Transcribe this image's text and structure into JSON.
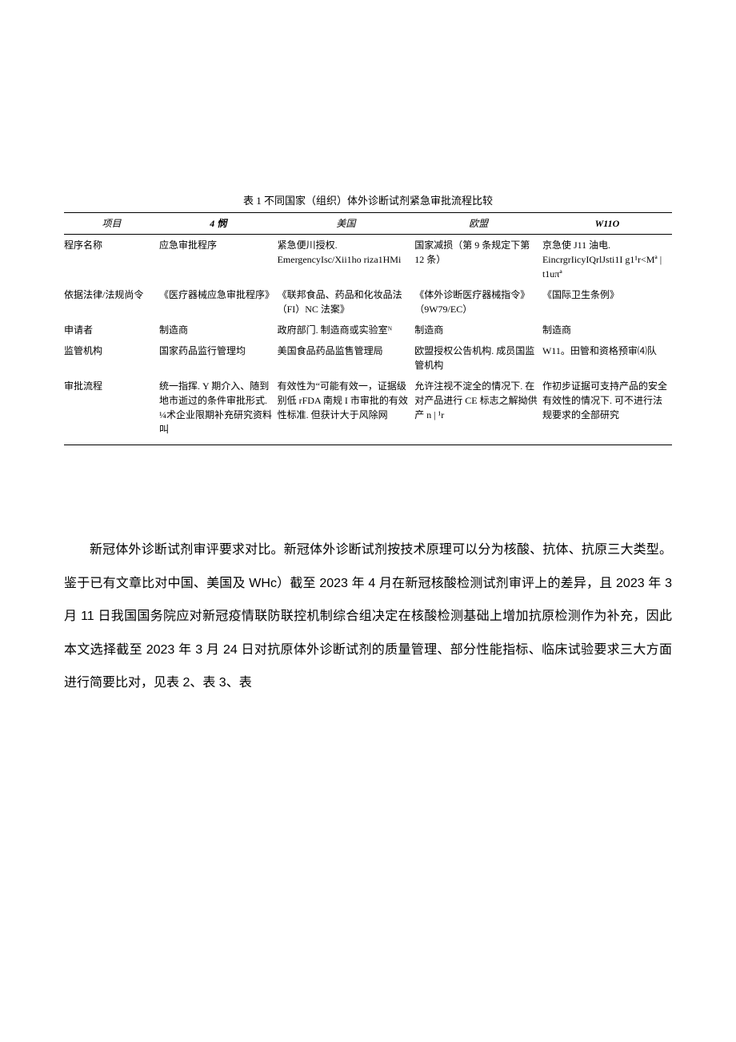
{
  "tableCaption": "表 1 不同国家（组织）体外诊断试剂紧急审批流程比较",
  "headers": {
    "c0": "项目",
    "c1": "4 悯",
    "c2": "美国",
    "c3": "欧盟",
    "c4": "W11O"
  },
  "rows": {
    "r1": {
      "c0": "程序名称",
      "c1": "应急审批程序",
      "c2": "紧急便川授权. EmergencyIsc/Xii1ho riza1HMi",
      "c3": "国家减损（第 9 条规定下第 12 条）",
      "c4": "京急使 J11 油电. EincrgrIicyIQrlJsti1I g1¹r<Mª | t1uπª"
    },
    "r2": {
      "c0": "依据法律/法规尚令",
      "c1": "《医疗器械应急审批程序》",
      "c2": "《联邦食品、药品和化妆品法（FI）NC 法案》",
      "c3": "《体外诊断医疗器械指令》（9W79/EC）",
      "c4": "《国际卫生条例》"
    },
    "r3": {
      "c0": "申请者",
      "c1": "制造商",
      "c2": "政府部门. 制造商或实验室ᴺ",
      "c3": "制造商",
      "c4": "制造商"
    },
    "r4": {
      "c0": "监管机构",
      "c1": "国家药品监行管理均",
      "c2": "美国食品药品监售管理局",
      "c3": "欧盟授权公告机构. 成员国监管机构",
      "c4": "W11。田管和资格预审⑷队"
    },
    "r5": {
      "c0": "审批流程",
      "c1": "统一指挥. Y 期介入、随到地市逝过的条件审批形式. ¼术企业限期补充研究资料叫",
      "c2": "有效性为“可能有效一，证据级别低 rFDA 南规 I 市审批的有效性标准. 但获计大于风除网",
      "c3": "允许注视不淀全的情况下. 在对产品进行 CE 标志之解拗供产 n | ¹r",
      "c4": "作初步证据可支持产品的安全有效性的情况下. 可不进行法规要求的全部研究"
    }
  },
  "bodyText": "新冠体外诊断试剂审评要求对比。新冠体外诊断试剂按技术原理可以分为核酸、抗体、抗原三大类型。鉴于已有文章比对中国、美国及 WHc）截至 2023 年 4 月在新冠核酸检测试剂审评上的差异，且 2023 年 3 月 11 日我国国务院应对新冠疫情联防联控机制综合组决定在核酸检测基础上增加抗原检测作为补充，因此本文选择截至 2023 年 3 月 24 日对抗原体外诊断试剂的质量管理、部分性能指标、临床试验要求三大方面进行简要比对，见表 2、表 3、表"
}
